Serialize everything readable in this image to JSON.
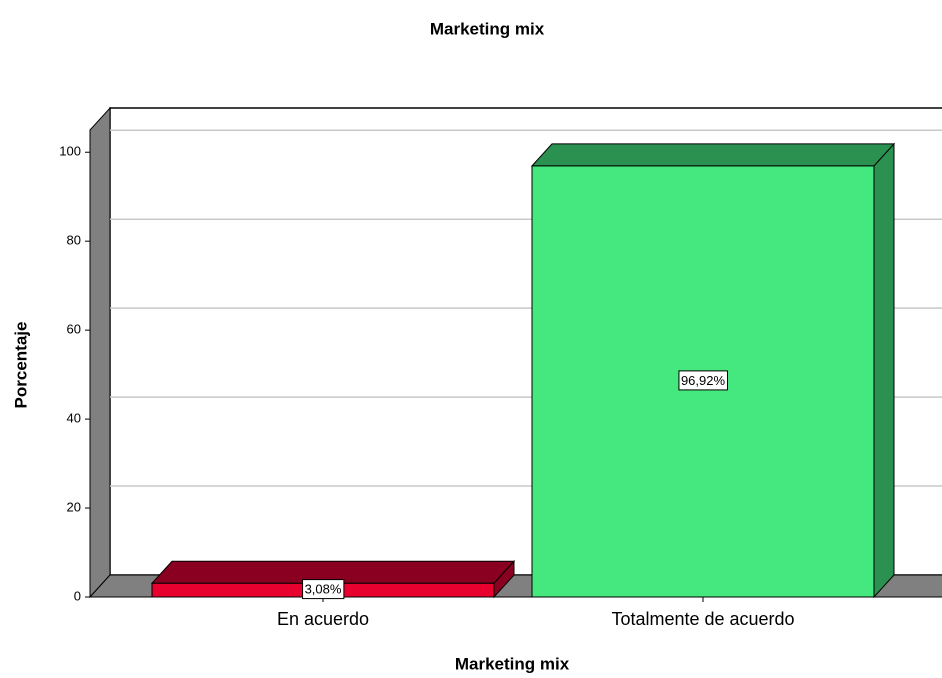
{
  "chart_data": {
    "type": "bar3d",
    "title": "Marketing mix",
    "x_label": "Marketing mix",
    "y_label": "Porcentaje",
    "categories": [
      "En acuerdo",
      "Totalmente de acuerdo"
    ],
    "values": [
      3.08,
      96.92
    ],
    "value_labels": [
      "3,08%",
      "96,92%"
    ],
    "colors": [
      "#e8002f",
      "#45e87e"
    ],
    "side_colors": [
      "#8a0020",
      "#2a9150"
    ],
    "ylim": [
      0,
      105
    ],
    "yticks": [
      0,
      20,
      40,
      60,
      80,
      100
    ],
    "grid": true
  }
}
